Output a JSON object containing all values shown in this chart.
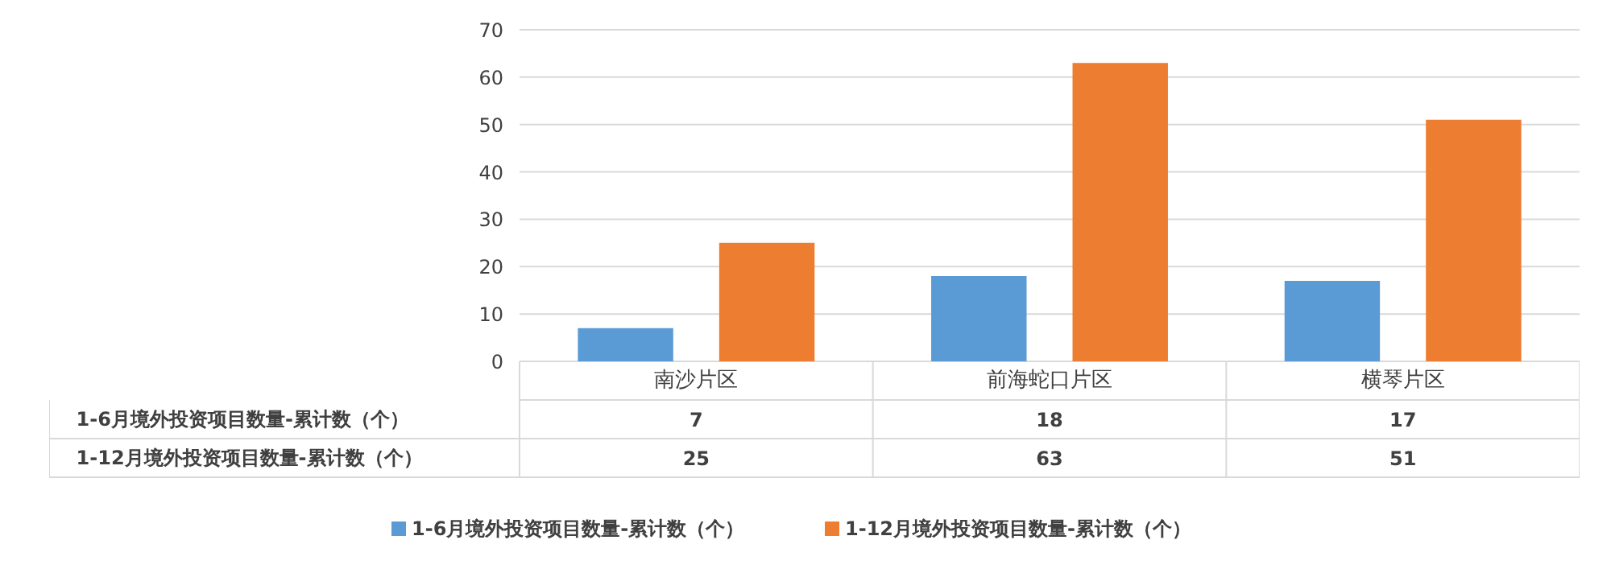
{
  "chart_data": {
    "type": "bar",
    "categories": [
      "南沙片区",
      "前海蛇口片区",
      "横琴片区"
    ],
    "series": [
      {
        "name": "1-6月境外投资项目数量-累计数（个）",
        "color": "#5b9bd5",
        "values": [
          7,
          18,
          17
        ]
      },
      {
        "name": "1-12月境外投资项目数量-累计数（个）",
        "color": "#ed7d31",
        "values": [
          25,
          63,
          51
        ]
      }
    ],
    "ylim": [
      0,
      70
    ],
    "yticks": [
      0,
      10,
      20,
      30,
      40,
      50,
      60,
      70
    ],
    "grid": "y",
    "legend": "bottom",
    "data_labels": true
  }
}
